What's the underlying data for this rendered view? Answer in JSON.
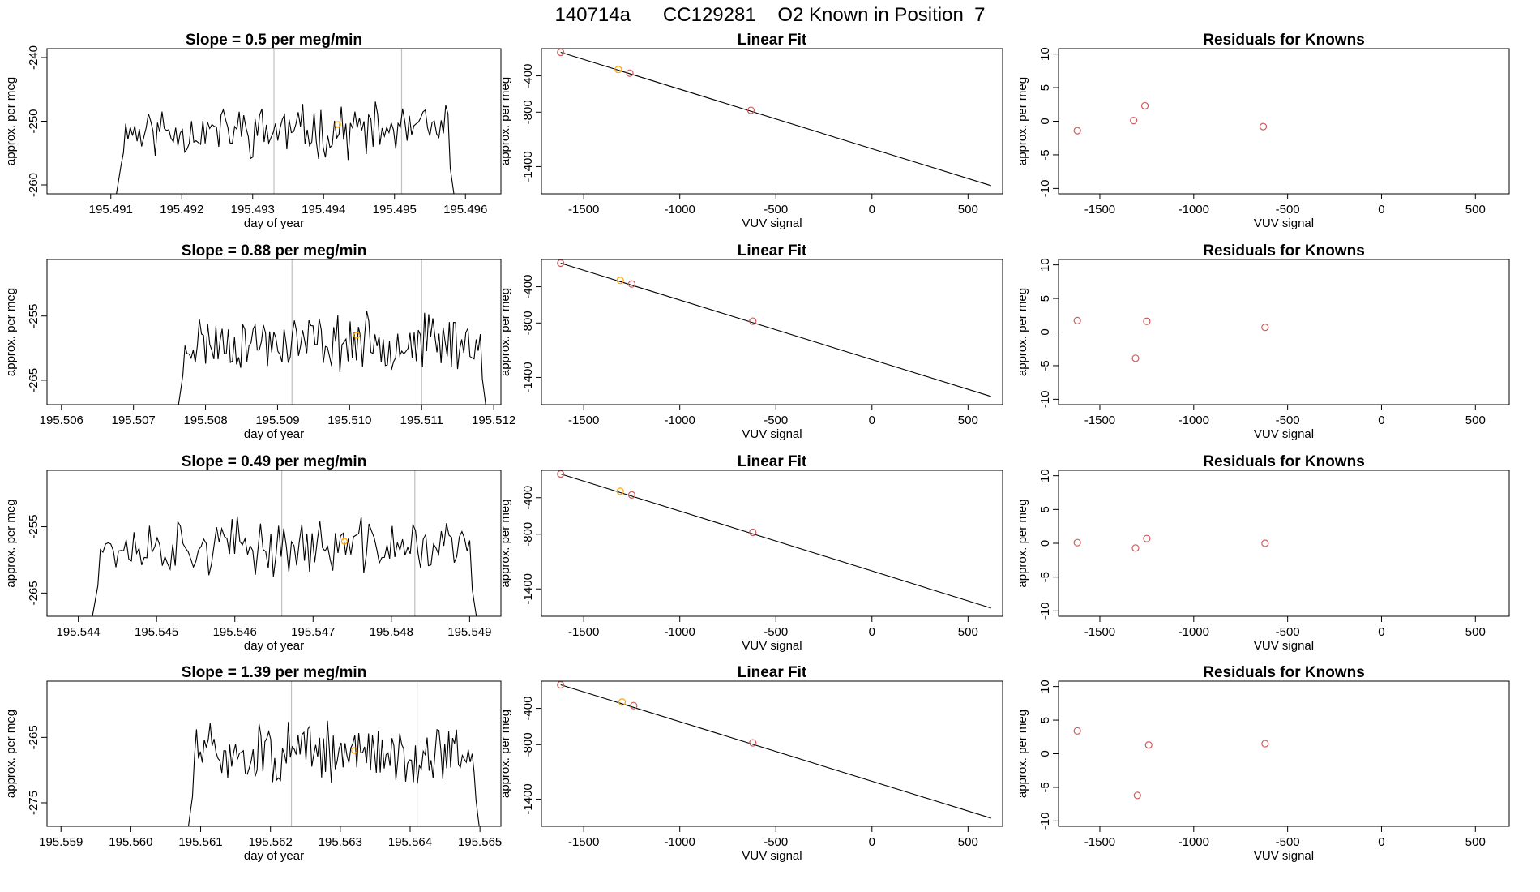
{
  "figure": {
    "title": "140714a      CC129281    O2 Known in Position  7"
  },
  "chart_data": [
    {
      "row": 1,
      "type": "line",
      "title": "Slope =  0.5  per meg/min",
      "xlabel": "day of year",
      "ylabel": "approx. per meg",
      "xlim": [
        195.4901,
        195.4965
      ],
      "ylim": [
        -261.4,
        -238.6
      ],
      "xticks": [
        195.491,
        195.492,
        195.493,
        195.494,
        195.495,
        195.496
      ],
      "xtick_labels": [
        "195.491",
        "195.492",
        "195.493",
        "195.494",
        "195.495",
        "195.496"
      ],
      "yticks": [
        -240,
        -250,
        -260
      ],
      "ytick_labels": [
        "-240",
        "-250",
        "-260"
      ],
      "vlines": [
        195.4933,
        195.4951
      ],
      "marker": {
        "x": 195.4942,
        "y": -250.5,
        "color": "#ffa500"
      },
      "series_range": [
        195.49105,
        195.49585
      ],
      "series_baseline": -251.5,
      "series_amp": 3.2,
      "series_seed": 11,
      "colors": {
        "line": "#000000",
        "vline": "#c0c0c0"
      }
    },
    {
      "row": 1,
      "type": "scatter",
      "title": "Linear Fit",
      "xlabel": "VUV signal",
      "ylabel": "approx. per meg",
      "xlim": [
        -1720,
        680
      ],
      "ylim": [
        -1700,
        -100
      ],
      "xticks": [
        -1500,
        -1000,
        -500,
        0,
        500
      ],
      "xtick_labels": [
        "-1500",
        "-1000",
        "-500",
        "0",
        "500"
      ],
      "yticks": [
        -400,
        -800,
        -1400
      ],
      "ytick_labels": [
        "-400",
        "-800",
        "-1400"
      ],
      "fit_line": {
        "x": [
          -1620,
          620
        ],
        "y": [
          -140,
          -1610
        ]
      },
      "points": [
        {
          "x": -1620,
          "y": -140,
          "color": "#cd5c5c"
        },
        {
          "x": -1320,
          "y": -330,
          "color": "#ffa500"
        },
        {
          "x": -1260,
          "y": -370,
          "color": "#cd5c5c"
        },
        {
          "x": -630,
          "y": -780,
          "color": "#cd5c5c"
        }
      ]
    },
    {
      "row": 1,
      "type": "scatter",
      "title": "Residuals for Knowns",
      "xlabel": "VUV signal",
      "ylabel": "approx. per meg",
      "xlim": [
        -1720,
        680
      ],
      "ylim": [
        -10.8,
        10.8
      ],
      "xticks": [
        -1500,
        -1000,
        -500,
        0,
        500
      ],
      "xtick_labels": [
        "-1500",
        "-1000",
        "-500",
        "0",
        "500"
      ],
      "yticks": [
        10,
        5,
        0,
        -5,
        -10
      ],
      "ytick_labels": [
        "10",
        "5",
        "0",
        "-5",
        "-10"
      ],
      "points": [
        {
          "x": -1620,
          "y": -1.4,
          "color": "#cd5c5c"
        },
        {
          "x": -1320,
          "y": 0.1,
          "color": "#cd5c5c"
        },
        {
          "x": -1260,
          "y": 2.3,
          "color": "#cd5c5c"
        },
        {
          "x": -630,
          "y": -0.8,
          "color": "#cd5c5c"
        }
      ]
    },
    {
      "row": 2,
      "type": "line",
      "title": "Slope =  0.88  per meg/min",
      "xlabel": "day of year",
      "ylabel": "approx. per meg",
      "xlim": [
        195.5058,
        195.5121
      ],
      "ylim": [
        -268.8,
        -246.2
      ],
      "xticks": [
        195.506,
        195.507,
        195.508,
        195.509,
        195.51,
        195.511,
        195.512
      ],
      "xtick_labels": [
        "195.506",
        "195.507",
        "195.508",
        "195.509",
        "195.510",
        "195.511",
        "195.512"
      ],
      "yticks": [
        -255,
        -265
      ],
      "ytick_labels": [
        "-255",
        "-265"
      ],
      "vlines": [
        195.5092,
        195.511
      ],
      "marker": {
        "x": 195.5101,
        "y": -258.0,
        "color": "#ffa500"
      },
      "series_range": [
        195.5076,
        195.5119
      ],
      "series_baseline": -259.0,
      "series_amp": 3.4,
      "series_seed": 23,
      "colors": {
        "line": "#000000",
        "vline": "#c0c0c0"
      }
    },
    {
      "row": 2,
      "type": "scatter",
      "title": "Linear Fit",
      "xlabel": "VUV signal",
      "ylabel": "approx. per meg",
      "xlim": [
        -1720,
        680
      ],
      "ylim": [
        -1700,
        -100
      ],
      "xticks": [
        -1500,
        -1000,
        -500,
        0,
        500
      ],
      "xtick_labels": [
        "-1500",
        "-1000",
        "-500",
        "0",
        "500"
      ],
      "yticks": [
        -400,
        -800,
        -1400
      ],
      "ytick_labels": [
        "-400",
        "-800",
        "-1400"
      ],
      "fit_line": {
        "x": [
          -1620,
          620
        ],
        "y": [
          -140,
          -1610
        ]
      },
      "points": [
        {
          "x": -1620,
          "y": -140,
          "color": "#cd5c5c"
        },
        {
          "x": -1310,
          "y": -330,
          "color": "#ffa500"
        },
        {
          "x": -1250,
          "y": -370,
          "color": "#cd5c5c"
        },
        {
          "x": -620,
          "y": -780,
          "color": "#cd5c5c"
        }
      ]
    },
    {
      "row": 2,
      "type": "scatter",
      "title": "Residuals for Knowns",
      "xlabel": "VUV signal",
      "ylabel": "approx. per meg",
      "xlim": [
        -1720,
        680
      ],
      "ylim": [
        -10.8,
        10.8
      ],
      "xticks": [
        -1500,
        -1000,
        -500,
        0,
        500
      ],
      "xtick_labels": [
        "-1500",
        "-1000",
        "-500",
        "0",
        "500"
      ],
      "yticks": [
        10,
        5,
        0,
        -5,
        -10
      ],
      "ytick_labels": [
        "10",
        "5",
        "0",
        "-5",
        "-10"
      ],
      "points": [
        {
          "x": -1620,
          "y": 1.7,
          "color": "#cd5c5c"
        },
        {
          "x": -1310,
          "y": -3.9,
          "color": "#cd5c5c"
        },
        {
          "x": -1250,
          "y": 1.6,
          "color": "#cd5c5c"
        },
        {
          "x": -620,
          "y": 0.7,
          "color": "#cd5c5c"
        }
      ]
    },
    {
      "row": 3,
      "type": "line",
      "title": "Slope =  0.49  per meg/min",
      "xlabel": "day of year",
      "ylabel": "approx. per meg",
      "xlim": [
        195.5436,
        195.5494
      ],
      "ylim": [
        -268.5,
        -246.5
      ],
      "xticks": [
        195.544,
        195.545,
        195.546,
        195.547,
        195.548,
        195.549
      ],
      "xtick_labels": [
        "195.544",
        "195.545",
        "195.546",
        "195.547",
        "195.548",
        "195.549"
      ],
      "yticks": [
        -255,
        -265
      ],
      "ytick_labels": [
        "-255",
        "-265"
      ],
      "vlines": [
        195.5466,
        195.5483
      ],
      "marker": {
        "x": 195.5474,
        "y": -257.2,
        "color": "#ffa500"
      },
      "series_range": [
        195.54415,
        195.5491
      ],
      "series_baseline": -258.0,
      "series_amp": 3.3,
      "series_seed": 37,
      "colors": {
        "line": "#000000",
        "vline": "#c0c0c0"
      }
    },
    {
      "row": 3,
      "type": "scatter",
      "title": "Linear Fit",
      "xlabel": "VUV signal",
      "ylabel": "approx. per meg",
      "xlim": [
        -1720,
        680
      ],
      "ylim": [
        -1700,
        -100
      ],
      "xticks": [
        -1500,
        -1000,
        -500,
        0,
        500
      ],
      "xtick_labels": [
        "-1500",
        "-1000",
        "-500",
        "0",
        "500"
      ],
      "yticks": [
        -400,
        -800,
        -1400
      ],
      "ytick_labels": [
        "-400",
        "-800",
        "-1400"
      ],
      "fit_line": {
        "x": [
          -1620,
          620
        ],
        "y": [
          -140,
          -1610
        ]
      },
      "points": [
        {
          "x": -1620,
          "y": -140,
          "color": "#cd5c5c"
        },
        {
          "x": -1310,
          "y": -330,
          "color": "#ffa500"
        },
        {
          "x": -1250,
          "y": -370,
          "color": "#cd5c5c"
        },
        {
          "x": -620,
          "y": -780,
          "color": "#cd5c5c"
        }
      ]
    },
    {
      "row": 3,
      "type": "scatter",
      "title": "Residuals for Knowns",
      "xlabel": "VUV signal",
      "ylabel": "approx. per meg",
      "xlim": [
        -1720,
        680
      ],
      "ylim": [
        -10.8,
        10.8
      ],
      "xticks": [
        -1500,
        -1000,
        -500,
        0,
        500
      ],
      "xtick_labels": [
        "-1500",
        "-1000",
        "-500",
        "0",
        "500"
      ],
      "yticks": [
        10,
        5,
        0,
        -5,
        -10
      ],
      "ytick_labels": [
        "10",
        "5",
        "0",
        "-5",
        "-10"
      ],
      "points": [
        {
          "x": -1620,
          "y": 0.1,
          "color": "#cd5c5c"
        },
        {
          "x": -1310,
          "y": -0.7,
          "color": "#cd5c5c"
        },
        {
          "x": -1250,
          "y": 0.7,
          "color": "#cd5c5c"
        },
        {
          "x": -620,
          "y": 0.0,
          "color": "#cd5c5c"
        }
      ]
    },
    {
      "row": 4,
      "type": "line",
      "title": "Slope =  1.39  per meg/min",
      "xlabel": "day of year",
      "ylabel": "approx. per meg",
      "xlim": [
        195.5588,
        195.5653
      ],
      "ylim": [
        -278.6,
        -256.4
      ],
      "xticks": [
        195.559,
        195.56,
        195.561,
        195.562,
        195.563,
        195.564,
        195.565
      ],
      "xtick_labels": [
        "195.559",
        "195.560",
        "195.561",
        "195.562",
        "195.563",
        "195.564",
        "195.565"
      ],
      "yticks": [
        -265,
        -275
      ],
      "ytick_labels": [
        "-265",
        "-275"
      ],
      "vlines": [
        195.5623,
        195.5641
      ],
      "marker": {
        "x": 195.5632,
        "y": -267.0,
        "color": "#ffa500"
      },
      "series_range": [
        195.5608,
        195.565
      ],
      "series_baseline": -267.5,
      "series_amp": 3.6,
      "series_seed": 51,
      "colors": {
        "line": "#000000",
        "vline": "#c0c0c0"
      }
    },
    {
      "row": 4,
      "type": "scatter",
      "title": "Linear Fit",
      "xlabel": "VUV signal",
      "ylabel": "approx. per meg",
      "xlim": [
        -1720,
        680
      ],
      "ylim": [
        -1700,
        -100
      ],
      "xticks": [
        -1500,
        -1000,
        -500,
        0,
        500
      ],
      "xtick_labels": [
        "-1500",
        "-1000",
        "-500",
        "0",
        "500"
      ],
      "yticks": [
        -400,
        -800,
        -1400
      ],
      "ytick_labels": [
        "-400",
        "-800",
        "-1400"
      ],
      "fit_line": {
        "x": [
          -1620,
          620
        ],
        "y": [
          -140,
          -1610
        ]
      },
      "points": [
        {
          "x": -1620,
          "y": -140,
          "color": "#cd5c5c"
        },
        {
          "x": -1300,
          "y": -330,
          "color": "#ffa500"
        },
        {
          "x": -1240,
          "y": -370,
          "color": "#cd5c5c"
        },
        {
          "x": -620,
          "y": -780,
          "color": "#cd5c5c"
        }
      ]
    },
    {
      "row": 4,
      "type": "scatter",
      "title": "Residuals for Knowns",
      "xlabel": "VUV signal",
      "ylabel": "approx. per meg",
      "xlim": [
        -1720,
        680
      ],
      "ylim": [
        -10.8,
        10.8
      ],
      "xticks": [
        -1500,
        -1000,
        -500,
        0,
        500
      ],
      "xtick_labels": [
        "-1500",
        "-1000",
        "-500",
        "0",
        "500"
      ],
      "yticks": [
        10,
        5,
        0,
        -5,
        -10
      ],
      "ytick_labels": [
        "10",
        "5",
        "0",
        "-5",
        "-10"
      ],
      "points": [
        {
          "x": -1620,
          "y": 3.4,
          "color": "#cd5c5c"
        },
        {
          "x": -1300,
          "y": -6.2,
          "color": "#cd5c5c"
        },
        {
          "x": -1240,
          "y": 1.3,
          "color": "#cd5c5c"
        },
        {
          "x": -620,
          "y": 1.5,
          "color": "#cd5c5c"
        }
      ]
    }
  ]
}
